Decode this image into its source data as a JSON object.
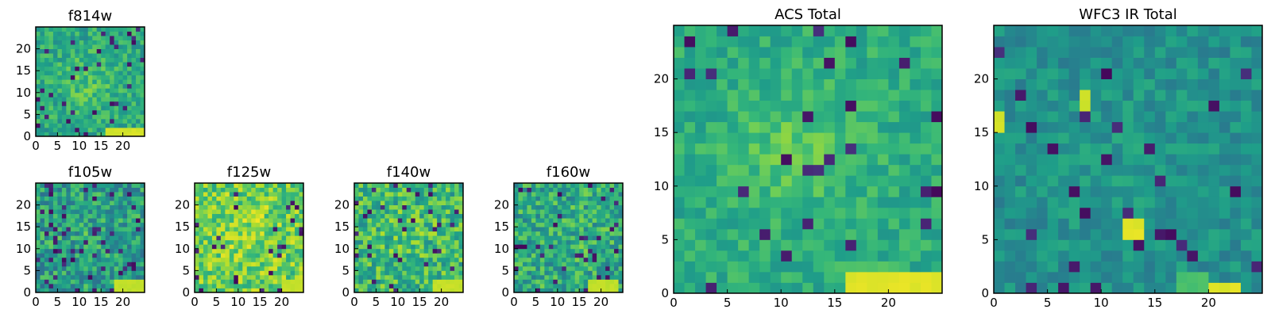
{
  "chart_data": [
    {
      "type": "heatmap",
      "title": "f814w",
      "xticks": [
        "0",
        "5",
        "10",
        "15",
        "20"
      ],
      "yticks": [
        "0",
        "5",
        "10",
        "15",
        "20"
      ],
      "xlim": [
        0,
        25
      ],
      "ylim": [
        0,
        25
      ],
      "colormap": "viridis",
      "notes": "Noisy greenish 25x25 cutout, faint bright blob near center, bright yellow strip at bottom-right (x 16-24, y 0-1)"
    },
    {
      "type": "heatmap",
      "title": "f105w",
      "xticks": [
        "0",
        "5",
        "10",
        "15",
        "20"
      ],
      "yticks": [
        "0",
        "5",
        "10",
        "15",
        "20"
      ],
      "xlim": [
        0,
        25
      ],
      "ylim": [
        0,
        25
      ],
      "colormap": "viridis",
      "notes": "Noisy cutout with bright yellow region at bottom-right"
    },
    {
      "type": "heatmap",
      "title": "f125w",
      "xticks": [
        "0",
        "5",
        "10",
        "15",
        "20"
      ],
      "yticks": [
        "0",
        "5",
        "10",
        "15",
        "20"
      ],
      "xlim": [
        0,
        25
      ],
      "ylim": [
        0,
        25
      ],
      "colormap": "viridis",
      "notes": "Bright yellow-green noisy cutout, dark spot near x=9,y=3"
    },
    {
      "type": "heatmap",
      "title": "f140w",
      "xticks": [
        "0",
        "5",
        "10",
        "15",
        "20"
      ],
      "yticks": [
        "0",
        "5",
        "10",
        "15",
        "20"
      ],
      "xlim": [
        0,
        25
      ],
      "ylim": [
        0,
        25
      ],
      "colormap": "viridis",
      "notes": "Noisy cutout, yellow patch at bottom-right"
    },
    {
      "type": "heatmap",
      "title": "f160w",
      "xticks": [
        "0",
        "5",
        "10",
        "15",
        "20"
      ],
      "yticks": [
        "0",
        "5",
        "10",
        "15",
        "20"
      ],
      "xlim": [
        0,
        25
      ],
      "ylim": [
        0,
        25
      ],
      "colormap": "viridis",
      "notes": "Noisy cutout, dark pixels at left edge near y=10, yellow patch bottom-right"
    },
    {
      "type": "heatmap",
      "title": "ACS Total",
      "xticks": [
        "0",
        "5",
        "10",
        "15",
        "20"
      ],
      "yticks": [
        "0",
        "5",
        "10",
        "15",
        "20"
      ],
      "xlim": [
        0,
        25
      ],
      "ylim": [
        0,
        25
      ],
      "colormap": "viridis",
      "notes": "Coarse pixel map, brighter green blob around x 8-14, y 10-15, bright yellow strip at bottom (x 16-24, y 0-1)"
    },
    {
      "type": "heatmap",
      "title": "WFC3 IR Total",
      "xticks": [
        "0",
        "5",
        "10",
        "15",
        "20"
      ],
      "yticks": [
        "0",
        "5",
        "10",
        "15",
        "20"
      ],
      "xlim": [
        0,
        25
      ],
      "ylim": [
        0,
        25
      ],
      "colormap": "viridis",
      "notes": "Coarse pixel map, yellow pixels at x=0,y=15-16, x=8,y=17-18, x 12-14,y 5-6, and bottom strip x 20-22,y 0"
    }
  ]
}
